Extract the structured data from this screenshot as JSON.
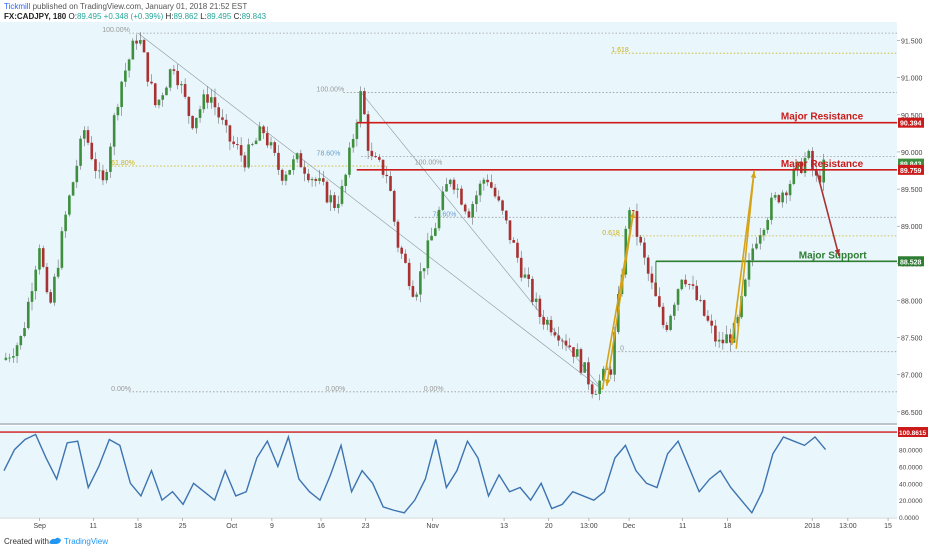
{
  "header": {
    "author": "Tickmill",
    "published_text": "published on TradingView.com, January 01, 2018 21:52 EST",
    "symbol": "FX:CADJPY, 180",
    "open_label": "O:",
    "open": "89.495",
    "change": "+0.348 (+0.39%)",
    "high_label": "H:",
    "high": "89.862",
    "low_label": "L:",
    "low": "89.495",
    "close_label": "C:",
    "close": "89.843"
  },
  "footer": {
    "created_with": "Created with",
    "brand": "TradingView"
  },
  "colors": {
    "background": "#e9f6fb",
    "up": "#3d8f3d",
    "down": "#a83232",
    "resistance": "#cc1a1a",
    "support": "#2e7d32",
    "fib_gray": "#9a9a9a",
    "fib_gold": "#c9b218",
    "fib_blue": "#6a9ecf",
    "arrow_gold": "#d4a31a",
    "oscillator": "#3d73b0"
  },
  "chart_data": {
    "type": "candlestick",
    "price_axis": {
      "ticks": [
        "91.500",
        "91.000",
        "90.500",
        "90.000",
        "89.500",
        "89.000",
        "88.500",
        "88.000",
        "87.500",
        "87.000",
        "86.500"
      ],
      "ylim": [
        86.35,
        91.75
      ]
    },
    "time_axis": {
      "ticks": [
        "Sep",
        "11",
        "18",
        "25",
        "Oct",
        "9",
        "16",
        "23",
        "Nov",
        "13",
        "20",
        "13:00",
        "Dec",
        "11",
        "18",
        "2018",
        "13:00",
        "15"
      ]
    },
    "price_tags": [
      {
        "value": "90.394",
        "color": "#cc1a1a"
      },
      {
        "value": "89.843",
        "color": "#3d8f3d"
      },
      {
        "value": "89.759",
        "color": "#cc1a1a"
      },
      {
        "value": "88.528",
        "color": "#2e7d32"
      }
    ],
    "horizontal_levels": [
      {
        "name": "Major Resistance",
        "label": "Major Resistance",
        "value": 90.394,
        "color": "#cc1a1a"
      },
      {
        "name": "Major Resistance",
        "label": "Major Resistance",
        "value": 89.759,
        "color": "#cc1a1a"
      },
      {
        "name": "Major Support",
        "label": "Major Support",
        "value": 88.528,
        "color": "#2e7d32"
      }
    ],
    "fib_labels": [
      {
        "text": "100.00%",
        "price": 91.6,
        "color": "#9a9a9a"
      },
      {
        "text": "1.618",
        "price": 91.33,
        "color": "#c9b218"
      },
      {
        "text": "100.00%",
        "price": 90.8,
        "color": "#9a9a9a"
      },
      {
        "text": "78.60%",
        "price": 89.94,
        "color": "#6a9ecf"
      },
      {
        "text": "61.80%",
        "price": 89.81,
        "color": "#c9b218"
      },
      {
        "text": "100.00%",
        "price": 89.82,
        "color": "#9a9a9a"
      },
      {
        "text": "78.60%",
        "price": 89.12,
        "color": "#6a9ecf"
      },
      {
        "text": "0.618",
        "price": 88.87,
        "color": "#c9b218"
      },
      {
        "text": "0",
        "price": 87.31,
        "color": "#9a9a9a"
      },
      {
        "text": "0.00%",
        "price": 86.77,
        "color": "#9a9a9a"
      },
      {
        "text": "0.00%",
        "price": 86.77,
        "color": "#9a9a9a"
      },
      {
        "text": "0.00%",
        "price": 86.77,
        "color": "#9a9a9a"
      }
    ],
    "price_path": [
      [
        0,
        87.2
      ],
      [
        0.02,
        87.5
      ],
      [
        0.04,
        88.8
      ],
      [
        0.05,
        87.8
      ],
      [
        0.07,
        89.2
      ],
      [
        0.09,
        90.3
      ],
      [
        0.11,
        89.5
      ],
      [
        0.13,
        90.9
      ],
      [
        0.15,
        91.6
      ],
      [
        0.17,
        90.6
      ],
      [
        0.19,
        91.2
      ],
      [
        0.21,
        90.4
      ],
      [
        0.23,
        90.8
      ],
      [
        0.25,
        90.2
      ],
      [
        0.27,
        89.9
      ],
      [
        0.29,
        90.3
      ],
      [
        0.31,
        89.7
      ],
      [
        0.33,
        89.9
      ],
      [
        0.35,
        89.6
      ],
      [
        0.37,
        89.3
      ],
      [
        0.38,
        89.5
      ],
      [
        0.4,
        90.8
      ],
      [
        0.41,
        89.9
      ],
      [
        0.43,
        89.7
      ],
      [
        0.44,
        88.8
      ],
      [
        0.46,
        88.1
      ],
      [
        0.48,
        88.9
      ],
      [
        0.5,
        89.7
      ],
      [
        0.52,
        89.2
      ],
      [
        0.54,
        89.7
      ],
      [
        0.56,
        89.1
      ],
      [
        0.58,
        88.4
      ],
      [
        0.6,
        87.8
      ],
      [
        0.62,
        87.6
      ],
      [
        0.64,
        87.3
      ],
      [
        0.66,
        86.8
      ],
      [
        0.68,
        87.1
      ],
      [
        0.7,
        89.3
      ],
      [
        0.72,
        88.4
      ],
      [
        0.74,
        87.6
      ],
      [
        0.76,
        88.4
      ],
      [
        0.78,
        87.9
      ],
      [
        0.8,
        87.4
      ],
      [
        0.82,
        87.6
      ],
      [
        0.84,
        88.8
      ],
      [
        0.86,
        89.3
      ],
      [
        0.88,
        89.6
      ],
      [
        0.9,
        89.95
      ],
      [
        0.91,
        89.6
      ],
      [
        0.92,
        89.84
      ]
    ],
    "oscillator": {
      "ticks": [
        "100.8615",
        "80.0000",
        "60.0000",
        "40.0000",
        "20.0000",
        "0.0000"
      ],
      "ylim": [
        0,
        108
      ],
      "resistance_level": 100.8615,
      "values": [
        55,
        80,
        92,
        98,
        70,
        45,
        88,
        90,
        35,
        60,
        92,
        85,
        40,
        25,
        55,
        20,
        30,
        15,
        40,
        30,
        20,
        55,
        25,
        30,
        70,
        90,
        60,
        95,
        45,
        30,
        20,
        50,
        85,
        30,
        55,
        40,
        12,
        8,
        5,
        20,
        45,
        92,
        35,
        55,
        90,
        70,
        25,
        50,
        30,
        35,
        20,
        40,
        10,
        15,
        30,
        25,
        20,
        30,
        70,
        85,
        55,
        40,
        35,
        75,
        90,
        60,
        30,
        45,
        55,
        35,
        20,
        5,
        30,
        75,
        95,
        90,
        85,
        95,
        80
      ]
    }
  }
}
